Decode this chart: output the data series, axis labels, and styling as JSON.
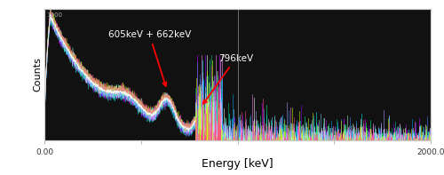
{
  "background_color": "#1a1a1a",
  "plot_bg_color": "#111111",
  "xlabel": "Energy [keV]",
  "ylabel": "Counts",
  "xlim": [
    0,
    2000
  ],
  "ylim": [
    0,
    1.0
  ],
  "xlabel_fontsize": 9,
  "ylabel_fontsize": 8,
  "annotation1_text": "605keV + 662keV",
  "annotation2_text": "796keV",
  "vline_x": 1000,
  "vline_color": "#777777",
  "border_color": "#cccccc",
  "xtick_labels_left": "0.00",
  "xtick_labels_right": "2000.0",
  "colors_main": [
    "#00ffff",
    "#00cc88",
    "#8800ff",
    "#cc00ff",
    "#ffffff",
    "#4488ff",
    "#00ff88",
    "#ff88ff",
    "#88ccff",
    "#aaaaff",
    "#00aaff",
    "#ffaaff",
    "#aaffcc",
    "#ccff00",
    "#ff4488"
  ],
  "seed": 12
}
